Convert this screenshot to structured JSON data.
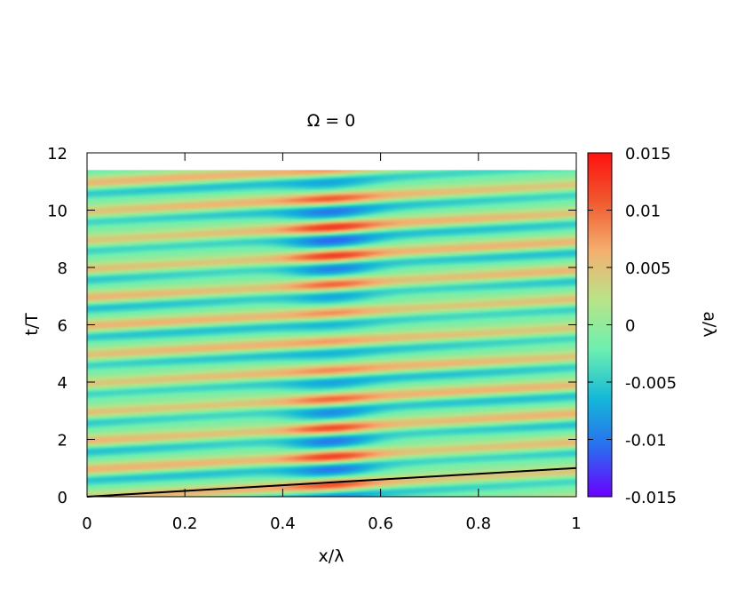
{
  "chart_data": {
    "type": "heatmap",
    "title": "Ω = 0",
    "xlabel": "x/λ",
    "ylabel": "t/T",
    "colorbar_label": "a/λ",
    "xlim": [
      0,
      1
    ],
    "ylim": [
      0,
      12
    ],
    "clim": [
      -0.015,
      0.015
    ],
    "data_tmax": 11.4,
    "xticks": [
      "0",
      "0.2",
      "0.4",
      "0.6",
      "0.8",
      "1"
    ],
    "yticks": [
      "0",
      "2",
      "4",
      "6",
      "8",
      "10",
      "12"
    ],
    "cticks": [
      "-0.015",
      "-0.01",
      "-0.005",
      "0",
      "0.005",
      "0.01",
      "0.015"
    ],
    "colormap": [
      "#6a00ff",
      "#2a6cf0",
      "#14b8d8",
      "#6cf0b0",
      "#b8e488",
      "#f4b070",
      "#f05a30",
      "#ff1010"
    ],
    "field": {
      "description_free": true,
      "crest_period_T": 1.0,
      "background_amplitude": 0.0055,
      "focus_x": 0.5,
      "focus_amplitude": 0.013
    },
    "overlay_line": {
      "x": [
        0,
        0.2,
        0.4,
        0.6,
        0.8,
        1.0
      ],
      "y": [
        0,
        0.2,
        0.4,
        0.6,
        0.8,
        1.0
      ],
      "color": "#000000"
    },
    "grid": false
  }
}
